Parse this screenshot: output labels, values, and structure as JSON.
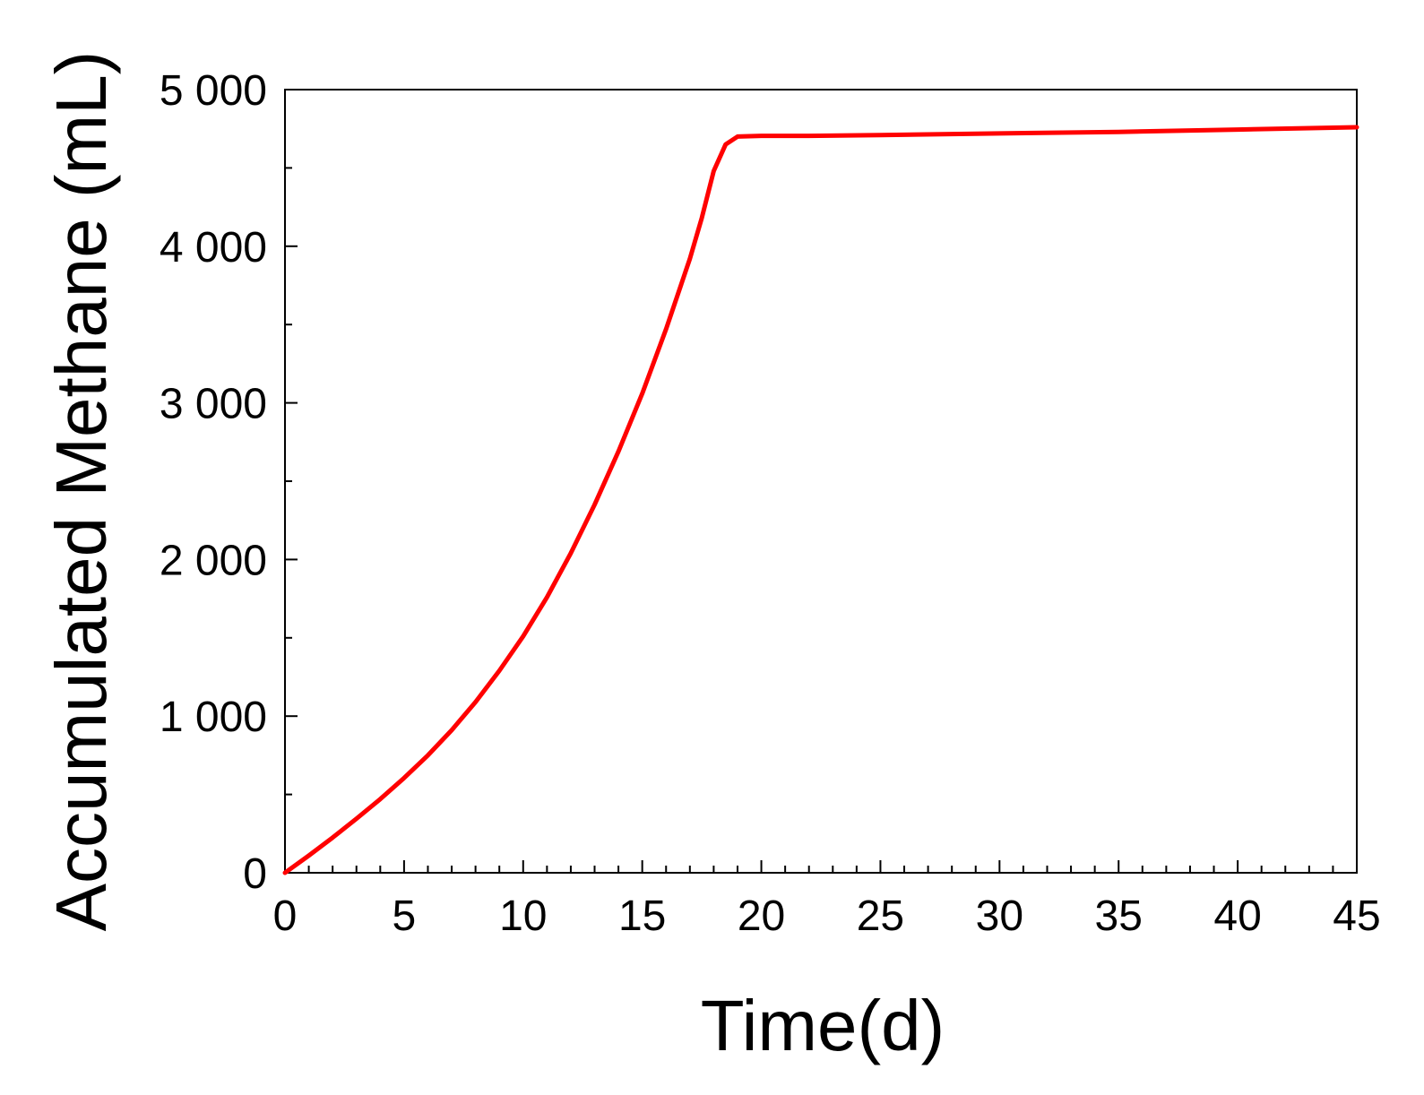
{
  "chart_data": {
    "type": "line",
    "title": "",
    "xlabel": "Time(d)",
    "ylabel": "Accumulated Methane (mL)",
    "xlim": [
      0,
      45
    ],
    "ylim": [
      0,
      5000
    ],
    "x_ticks": [
      0,
      5,
      10,
      15,
      20,
      25,
      30,
      35,
      40,
      45
    ],
    "x_tick_labels": [
      "0",
      "5",
      "10",
      "15",
      "20",
      "25",
      "30",
      "35",
      "40",
      "45"
    ],
    "y_ticks": [
      0,
      1000,
      2000,
      3000,
      4000,
      5000
    ],
    "y_tick_labels": [
      "0",
      "1 000",
      "2 000",
      "3 000",
      "4 000",
      "5 000"
    ],
    "x_minor_step": 1,
    "y_minor_step": 500,
    "grid": false,
    "legend": "none",
    "series": [
      {
        "color": "#ff0000",
        "x": [
          0,
          1,
          2,
          3,
          4,
          5,
          6,
          7,
          8,
          9,
          10,
          11,
          12,
          13,
          14,
          15,
          16,
          17,
          17.5,
          18,
          18.5,
          19,
          20,
          22,
          25,
          30,
          35,
          40,
          45
        ],
        "y": [
          0,
          110,
          225,
          345,
          470,
          605,
          750,
          910,
          1090,
          1290,
          1510,
          1760,
          2040,
          2350,
          2690,
          3060,
          3470,
          3920,
          4180,
          4480,
          4650,
          4700,
          4705,
          4705,
          4710,
          4720,
          4730,
          4745,
          4760
        ]
      }
    ]
  }
}
